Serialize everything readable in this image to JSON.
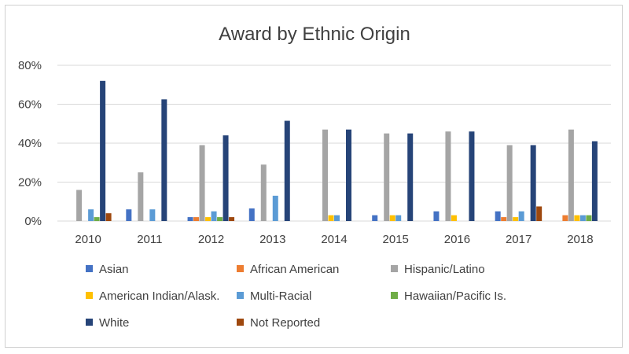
{
  "chart_data": {
    "type": "bar",
    "title": "Award by Ethnic Origin",
    "categories": [
      "2010",
      "2011",
      "2012",
      "2013",
      "2014",
      "2015",
      "2016",
      "2017",
      "2018"
    ],
    "ylim": [
      0,
      80
    ],
    "yticks": [
      "0%",
      "20%",
      "40%",
      "60%",
      "80%"
    ],
    "legend_position": "bottom",
    "grid": true,
    "series": [
      {
        "name": "Asian",
        "color": "#4472C4",
        "values": [
          0,
          6,
          2,
          6.5,
          0,
          3,
          5,
          5,
          0
        ]
      },
      {
        "name": "African American",
        "color": "#ED7D31",
        "values": [
          0,
          0,
          2,
          0,
          0,
          0,
          0,
          2,
          3
        ]
      },
      {
        "name": "Hispanic/Latino",
        "color": "#A5A5A5",
        "values": [
          16,
          25,
          39,
          29,
          47,
          45,
          46,
          39,
          47
        ]
      },
      {
        "name": "American Indian/Alask.",
        "color": "#FFC000",
        "values": [
          0,
          0,
          2,
          0,
          3,
          3,
          3,
          2,
          3
        ]
      },
      {
        "name": "Multi-Racial",
        "color": "#5B9BD5",
        "values": [
          6,
          6,
          5,
          13,
          3,
          3,
          0,
          5,
          3
        ]
      },
      {
        "name": "Hawaiian/Pacific Is.",
        "color": "#70AD47",
        "values": [
          2,
          0,
          2,
          0,
          0,
          0,
          0,
          0,
          3
        ]
      },
      {
        "name": "White",
        "color": "#264478",
        "values": [
          72,
          62.5,
          44,
          51.5,
          47,
          45,
          46,
          39,
          41
        ]
      },
      {
        "name": "Not Reported",
        "color": "#9E480E",
        "values": [
          4,
          0,
          2,
          0,
          0,
          0,
          0,
          7.5,
          0
        ]
      }
    ]
  }
}
